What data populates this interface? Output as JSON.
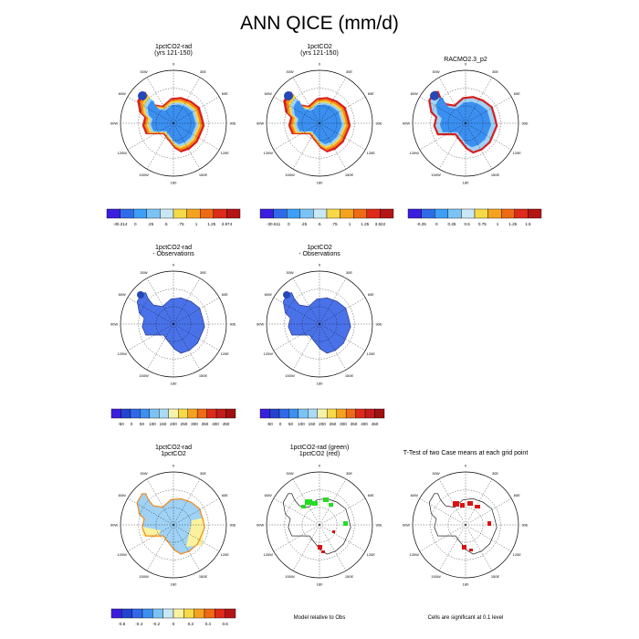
{
  "title": "ANN QICE (mm/d)",
  "colors": {
    "ice_interior": "#3b8ff0",
    "ice_pale": "#9fd2f5",
    "deep_blue": "#2448b8",
    "diff_fill": "#4a72e8",
    "coast_red": "#d91f1f",
    "coast_orange": "#f58a1a",
    "coast_yellow": "#f7d740",
    "pale_yellow": "#fbf2a0",
    "sig_green": "#22dd22",
    "sig_red": "#dd1111"
  },
  "lon_labels": [
    "0",
    "30E",
    "60E",
    "90E",
    "120E",
    "150E",
    "180",
    "150W",
    "120W",
    "90W",
    "60W",
    "30W"
  ],
  "panels": {
    "p1": {
      "title1": "1pctCO2-rad",
      "title2": "(yrs 121-150)"
    },
    "p2": {
      "title1": "1pctCO2",
      "title2": "(yrs 121-150)"
    },
    "p3": {
      "title1": "RACMO2.3_p2",
      "title2": ""
    },
    "p4": {
      "title1": "1pctCO2-rad",
      "title2": "- Observations"
    },
    "p5": {
      "title1": "1pctCO2",
      "title2": "- Observations"
    },
    "p7": {
      "title1": "1pctCO2-rad",
      "title2": "1pctCO2"
    },
    "p8": {
      "title1": "1pctCO2-rad (green)",
      "title2": "1pctCO2 (red)"
    },
    "p9": {
      "title1": "T-Test of two Case means at each grid point",
      "title2": ""
    }
  },
  "colorbars": {
    "cb1": {
      "colors": [
        "#3a1ee0",
        "#2f6ae8",
        "#3d9ff5",
        "#7cc3f5",
        "#c9e8f5",
        "#f6d948",
        "#f5a21f",
        "#ef6a14",
        "#dd2a1a",
        "#b51416"
      ],
      "labels": [
        "-30.214",
        "0",
        ".25",
        ".5",
        ".75",
        "1",
        "1.25",
        "3.874"
      ]
    },
    "cb2": {
      "colors": [
        "#3a1ee0",
        "#2f6ae8",
        "#3d9ff5",
        "#7cc3f5",
        "#c9e8f5",
        "#f6d948",
        "#f5a21f",
        "#ef6a14",
        "#dd2a1a",
        "#b51416"
      ],
      "labels": [
        "-30.611",
        "0",
        ".25",
        ".5",
        ".75",
        "1",
        "1.25",
        "3.822"
      ]
    },
    "cb3": {
      "colors": [
        "#3a1ee0",
        "#2f6ae8",
        "#3d9ff5",
        "#7cc3f5",
        "#c9e8f5",
        "#f6d948",
        "#f5a21f",
        "#ef6a14",
        "#dd2a1a",
        "#b51416"
      ],
      "labels": [
        "-0.25",
        "0",
        "0.25",
        "0.5",
        "0.75",
        "1",
        "1.25",
        "1.5"
      ]
    },
    "cb4": {
      "colors": [
        "#3a1ee0",
        "#2244d0",
        "#3068e8",
        "#3d8ff0",
        "#7cc3f5",
        "#a9dbf5",
        "#f6f2a8",
        "#f6d948",
        "#f5a21f",
        "#ef6a14",
        "#dd2a1a",
        "#c21c1c",
        "#a01010"
      ],
      "labels": [
        "-50",
        "0",
        "50",
        "100",
        "150",
        "200",
        "250",
        "300",
        "350",
        "400",
        "450"
      ]
    },
    "cb5": {
      "colors": [
        "#3a1ee0",
        "#2244d0",
        "#3068e8",
        "#3d8ff0",
        "#7cc3f5",
        "#a9dbf5",
        "#f6f2a8",
        "#f6d948",
        "#f5a21f",
        "#ef6a14",
        "#dd2a1a",
        "#c21c1c",
        "#a01010"
      ],
      "labels": [
        "-50",
        "0",
        "50",
        "100",
        "150",
        "200",
        "250",
        "300",
        "350",
        "400",
        "450"
      ]
    },
    "cb7": {
      "colors": [
        "#3a1ee0",
        "#2244d0",
        "#3068e8",
        "#3d8ff0",
        "#7cc3f5",
        "#c9e8f5",
        "#fbf2a0",
        "#f6d948",
        "#f5a21f",
        "#ef6a14",
        "#dd2a1a",
        "#b51416"
      ],
      "labels": [
        "-0.6",
        "-0.4",
        "-0.2",
        "0",
        "0.2",
        "0.4",
        "0.6"
      ]
    }
  },
  "notes": {
    "model_relative": "Model relative to Obs",
    "significance": "Cells are significant at 0.1 level"
  },
  "chart_data": [
    {
      "type": "heatmap",
      "panel": "1pctCO2-rad (yrs 121-150)",
      "projection": "south polar stereographic",
      "colorbar_ticks": [
        -30.214,
        0,
        0.25,
        0.5,
        0.75,
        1,
        1.25,
        3.874
      ]
    },
    {
      "type": "heatmap",
      "panel": "1pctCO2 (yrs 121-150)",
      "projection": "south polar stereographic",
      "colorbar_ticks": [
        -30.611,
        0,
        0.25,
        0.5,
        0.75,
        1,
        1.25,
        3.822
      ]
    },
    {
      "type": "heatmap",
      "panel": "RACMO2.3_p2",
      "projection": "south polar stereographic",
      "colorbar_ticks": [
        -0.25,
        0,
        0.25,
        0.5,
        0.75,
        1,
        1.25,
        1.5
      ]
    },
    {
      "type": "heatmap",
      "panel": "1pctCO2-rad - Observations",
      "colorbar_ticks": [
        -50,
        0,
        50,
        100,
        150,
        200,
        250,
        300,
        350,
        400,
        450
      ]
    },
    {
      "type": "heatmap",
      "panel": "1pctCO2 - Observations",
      "colorbar_ticks": [
        -50,
        0,
        50,
        100,
        150,
        200,
        250,
        300,
        350,
        400,
        450
      ]
    },
    {
      "type": "heatmap",
      "panel": "1pctCO2-rad 1pctCO2",
      "colorbar_ticks": [
        -0.6,
        -0.4,
        -0.2,
        0,
        0.2,
        0.4,
        0.6
      ]
    },
    {
      "type": "heatmap",
      "panel": "1pctCO2-rad (green) 1pctCO2 (red)",
      "note": "Model relative to Obs"
    },
    {
      "type": "heatmap",
      "panel": "T-Test of two Case means at each grid point",
      "note": "Cells are significant at 0.1 level"
    }
  ]
}
